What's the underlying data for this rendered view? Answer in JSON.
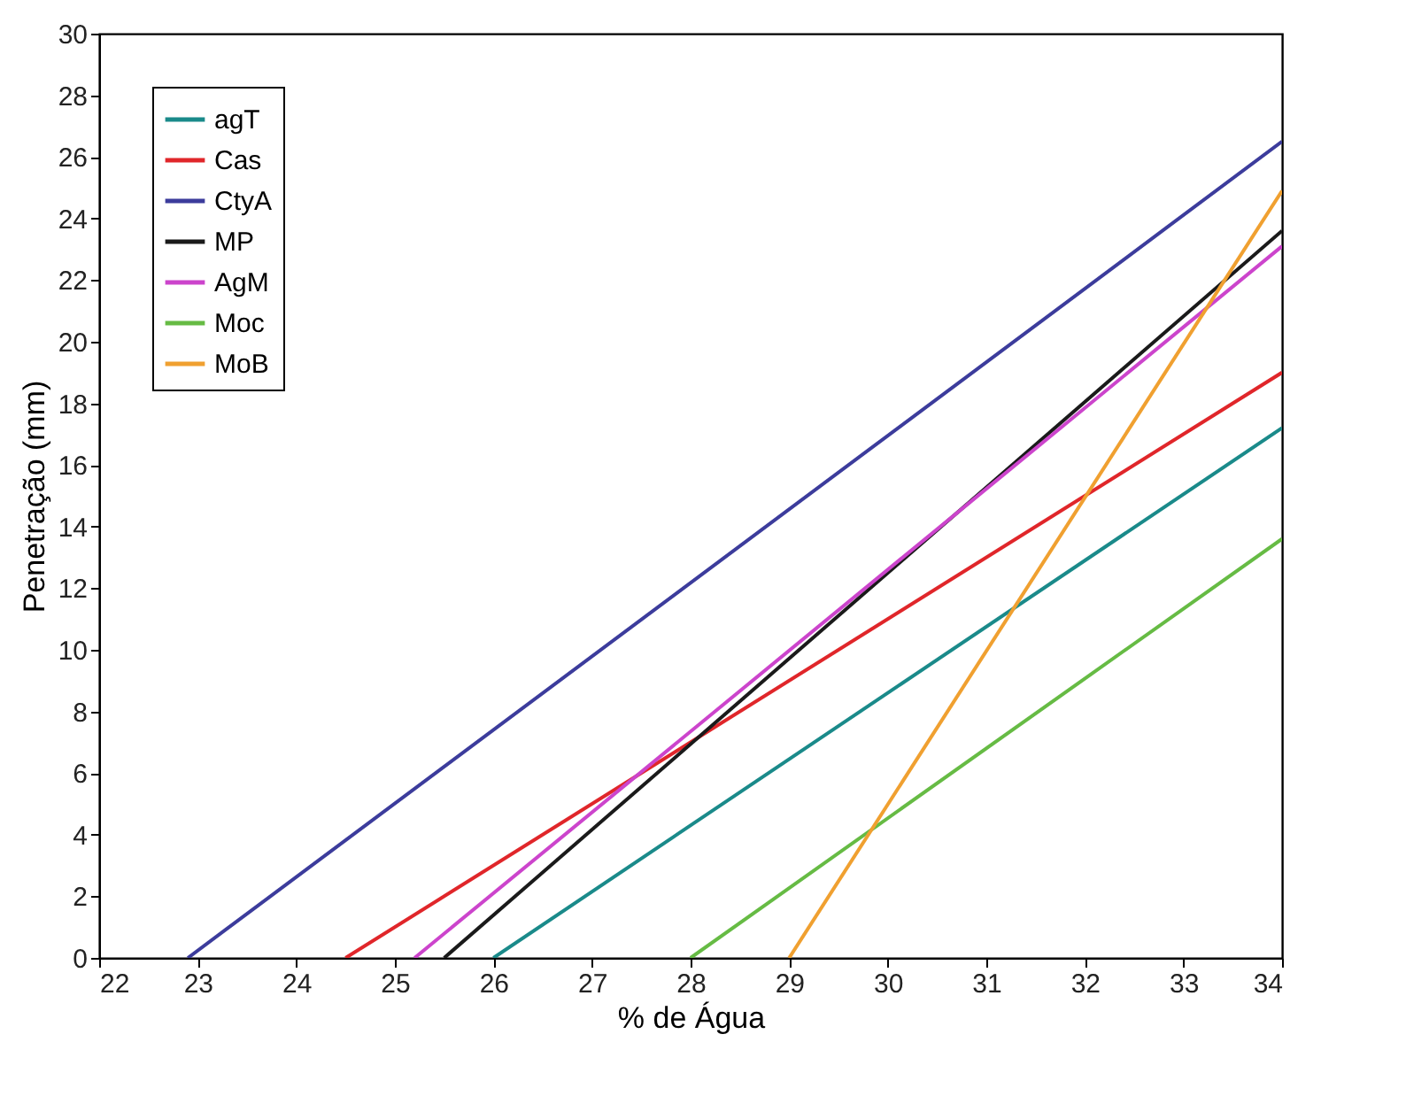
{
  "chart_data": {
    "type": "line",
    "xlabel": "% de Água",
    "ylabel": "Penetração (mm)",
    "xlim": [
      22,
      34
    ],
    "xticks": [
      22,
      23,
      24,
      25,
      26,
      27,
      28,
      29,
      30,
      31,
      32,
      33,
      34
    ],
    "ylim": [
      0,
      30
    ],
    "yticks": [
      0,
      2,
      4,
      6,
      8,
      10,
      12,
      14,
      16,
      18,
      20,
      22,
      24,
      26,
      28,
      30
    ],
    "grid": false,
    "legend": "top left",
    "series": [
      {
        "name": "agT",
        "color": "#1a8a8a",
        "x": [
          26.0,
          34
        ],
        "values": [
          0,
          17.2
        ]
      },
      {
        "name": "Cas",
        "color": "#e0262a",
        "x": [
          24.5,
          34
        ],
        "values": [
          0,
          19.0
        ]
      },
      {
        "name": "CtyA",
        "color": "#3c3c9c",
        "x": [
          22.9,
          34
        ],
        "values": [
          0,
          26.5
        ]
      },
      {
        "name": "MP",
        "color": "#1a1a1a",
        "x": [
          25.5,
          34
        ],
        "values": [
          0,
          23.6
        ]
      },
      {
        "name": "AgM",
        "color": "#cc44cc",
        "x": [
          25.2,
          34
        ],
        "values": [
          0,
          23.1
        ]
      },
      {
        "name": "Moc",
        "color": "#66bb44",
        "x": [
          28.0,
          34
        ],
        "values": [
          0,
          13.6
        ]
      },
      {
        "name": "MoB",
        "color": "#f0a030",
        "x": [
          29.0,
          34
        ],
        "values": [
          0,
          24.9
        ]
      }
    ]
  }
}
